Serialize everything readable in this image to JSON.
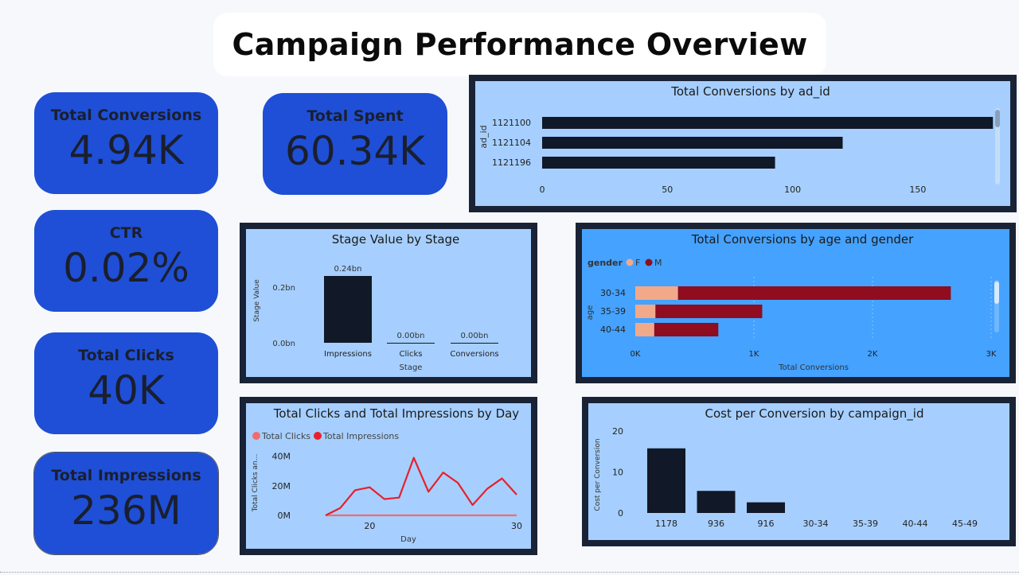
{
  "page_title": "Campaign Performance Overview",
  "kpis": {
    "total_conversions": {
      "label": "Total Conversions",
      "value": "4.94K"
    },
    "total_spent": {
      "label": "Total Spent",
      "value": "60.34K"
    },
    "ctr": {
      "label": "CTR",
      "value": "0.02%"
    },
    "total_clicks": {
      "label": "Total Clicks",
      "value": "40K"
    },
    "total_impressions": {
      "label": "Total Impressions",
      "value": "236M"
    }
  },
  "colors": {
    "kpi_bg": "#1f4fd6",
    "bar_dark": "#111827",
    "female": "#f2a98a",
    "male": "#900c1f",
    "line_clicks": "#f26c6c",
    "line_impressions": "#e8202a"
  },
  "chart_data": [
    {
      "type": "bar",
      "orientation": "horizontal",
      "title": "Total Conversions by ad_id",
      "ylabel": "ad_id",
      "xlabel": "",
      "categories": [
        "1121100",
        "1121104",
        "1121196"
      ],
      "values": [
        180,
        120,
        93
      ],
      "xlim": [
        0,
        185
      ],
      "ticks": [
        "0",
        "50",
        "100",
        "150"
      ]
    },
    {
      "type": "bar",
      "title": "Stage Value by Stage",
      "xlabel": "Stage",
      "ylabel": "Stage Value",
      "categories": [
        "Impressions",
        "Clicks",
        "Conversions"
      ],
      "values": [
        0.24,
        0.0,
        0.0
      ],
      "data_labels": [
        "0.24bn",
        "0.00bn",
        "0.00bn"
      ],
      "ylim": [
        0,
        0.24
      ],
      "ticks": [
        "0.0bn",
        "0.2bn"
      ]
    },
    {
      "type": "bar",
      "orientation": "horizontal",
      "stacked": true,
      "title": "Total Conversions by age and gender",
      "legend_title": "gender",
      "xlabel": "Total Conversions",
      "ylabel": "age",
      "categories": [
        "30-34",
        "35-39",
        "40-44"
      ],
      "series": [
        {
          "name": "F",
          "values": [
            360,
            170,
            160
          ]
        },
        {
          "name": "M",
          "values": [
            2300,
            900,
            540
          ]
        }
      ],
      "xlim": [
        0,
        3000
      ],
      "ticks": [
        "0K",
        "1K",
        "2K",
        "3K"
      ]
    },
    {
      "type": "line",
      "title": "Total Clicks and Total Impressions by Day",
      "xlabel": "Day",
      "ylabel": "Total Clicks an...",
      "x": [
        17,
        18,
        19,
        20,
        21,
        22,
        23,
        24,
        25,
        26,
        27,
        28,
        29,
        30
      ],
      "series": [
        {
          "name": "Total Clicks",
          "values": [
            0,
            0,
            0,
            0,
            0,
            0,
            0,
            0,
            0,
            0,
            0,
            0,
            0,
            0
          ]
        },
        {
          "name": "Total Impressions",
          "values": [
            0,
            5,
            17,
            19,
            11,
            12,
            39,
            16,
            29,
            22,
            7,
            18,
            25,
            14
          ]
        }
      ],
      "ylim": [
        0,
        42
      ],
      "yticks": [
        "0M",
        "20M",
        "40M"
      ],
      "xticks": [
        "20",
        "30"
      ]
    },
    {
      "type": "bar",
      "title": "Cost per Conversion by campaign_id",
      "xlabel": "",
      "ylabel": "Cost per Conversion",
      "categories": [
        "1178",
        "936",
        "916",
        "30-34",
        "35-39",
        "40-44",
        "45-49"
      ],
      "values": [
        15.8,
        5.4,
        2.6,
        0,
        0,
        0,
        0
      ],
      "ylim": [
        0,
        21
      ],
      "ticks": [
        "0",
        "10",
        "20"
      ]
    }
  ]
}
